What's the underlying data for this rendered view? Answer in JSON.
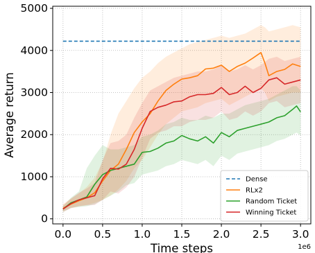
{
  "chart_data": {
    "type": "line",
    "title": "",
    "xlabel": "Time steps",
    "ylabel": "Average return",
    "x_offset_label": "1e6",
    "xlim": [
      -0.13,
      3.13
    ],
    "ylim": [
      -120,
      5050
    ],
    "xticks": [
      0.0,
      0.5,
      1.0,
      1.5,
      2.0,
      2.5,
      3.0
    ],
    "xtick_labels": [
      "0.0",
      "0.5",
      "1.0",
      "1.5",
      "2.0",
      "2.5",
      "3.0"
    ],
    "yticks": [
      0,
      1000,
      2000,
      3000,
      4000,
      5000
    ],
    "ytick_labels": [
      "0",
      "1000",
      "2000",
      "3000",
      "4000",
      "5000"
    ],
    "grid": true,
    "legend_position": "lower-right",
    "series": [
      {
        "name": "Dense",
        "color": "#1f77b4",
        "dashed": true,
        "x": [
          0.0,
          3.0
        ],
        "y": [
          4220,
          4220
        ]
      },
      {
        "name": "RLx2",
        "color": "#ff7f0e",
        "x": [
          0.0,
          0.1,
          0.2,
          0.3,
          0.4,
          0.5,
          0.6,
          0.7,
          0.8,
          0.9,
          1.0,
          1.1,
          1.2,
          1.3,
          1.4,
          1.5,
          1.6,
          1.7,
          1.8,
          1.9,
          2.0,
          2.1,
          2.2,
          2.3,
          2.4,
          2.5,
          2.55,
          2.6,
          2.7,
          2.8,
          2.9,
          3.0
        ],
        "y": [
          250,
          350,
          430,
          500,
          620,
          900,
          1150,
          1300,
          1650,
          2050,
          2300,
          2500,
          2800,
          3050,
          3200,
          3320,
          3350,
          3400,
          3560,
          3580,
          3650,
          3500,
          3620,
          3700,
          3820,
          3950,
          3700,
          3400,
          3500,
          3550,
          3680,
          3620
        ],
        "band_upper": [
          350,
          480,
          600,
          760,
          980,
          1350,
          2000,
          2500,
          2800,
          3100,
          3350,
          3500,
          3700,
          3850,
          3950,
          4050,
          4150,
          4200,
          4250,
          4300,
          4350,
          4300,
          4350,
          4400,
          4500,
          4600,
          4550,
          4450,
          4500,
          4550,
          4600,
          4550
        ],
        "band_lower": [
          180,
          260,
          300,
          330,
          380,
          450,
          550,
          700,
          900,
          1200,
          1400,
          1700,
          2000,
          2250,
          2400,
          2550,
          2600,
          2650,
          2750,
          2800,
          2850,
          2700,
          2800,
          2900,
          3000,
          3100,
          3000,
          2800,
          2900,
          2950,
          3000,
          3000
        ]
      },
      {
        "name": "Random Ticket",
        "color": "#2ca02c",
        "x": [
          0.0,
          0.1,
          0.2,
          0.3,
          0.4,
          0.5,
          0.6,
          0.7,
          0.8,
          0.9,
          1.0,
          1.1,
          1.2,
          1.3,
          1.4,
          1.5,
          1.6,
          1.7,
          1.8,
          1.9,
          2.0,
          2.1,
          2.2,
          2.3,
          2.4,
          2.5,
          2.6,
          2.7,
          2.8,
          2.9,
          2.95,
          3.0
        ],
        "y": [
          230,
          380,
          450,
          520,
          820,
          1050,
          1150,
          1200,
          1250,
          1300,
          1580,
          1600,
          1680,
          1800,
          1850,
          1980,
          1900,
          1850,
          1950,
          1800,
          2050,
          1950,
          2100,
          2150,
          2200,
          2250,
          2300,
          2400,
          2450,
          2600,
          2680,
          2540
        ],
        "band_upper": [
          300,
          500,
          650,
          1200,
          1500,
          1750,
          1650,
          1650,
          1700,
          1750,
          1950,
          2000,
          2100,
          2250,
          2300,
          2400,
          2350,
          2350,
          2450,
          2400,
          2500,
          2500,
          2600,
          2700,
          2750,
          2800,
          2850,
          2950,
          3050,
          3150,
          3150,
          3050
        ],
        "band_lower": [
          160,
          260,
          280,
          300,
          350,
          450,
          550,
          650,
          800,
          850,
          1050,
          1100,
          1150,
          1250,
          1300,
          1400,
          1350,
          1300,
          1400,
          1250,
          1500,
          1400,
          1550,
          1600,
          1650,
          1700,
          1750,
          1850,
          1900,
          2000,
          2050,
          1980
        ]
      },
      {
        "name": "Winning Ticket",
        "color": "#d62728",
        "x": [
          0.0,
          0.1,
          0.2,
          0.3,
          0.4,
          0.5,
          0.6,
          0.7,
          0.8,
          0.9,
          1.0,
          1.1,
          1.2,
          1.3,
          1.4,
          1.5,
          1.6,
          1.7,
          1.8,
          1.9,
          2.0,
          2.1,
          2.2,
          2.3,
          2.4,
          2.5,
          2.6,
          2.7,
          2.8,
          2.9,
          3.0
        ],
        "y": [
          230,
          360,
          450,
          500,
          550,
          950,
          1200,
          1180,
          1300,
          1650,
          2150,
          2550,
          2650,
          2700,
          2780,
          2800,
          2900,
          2950,
          2950,
          2980,
          3120,
          2950,
          3000,
          3150,
          3000,
          3100,
          3300,
          3350,
          3200,
          3250,
          3300
        ],
        "band_upper": [
          320,
          480,
          620,
          720,
          850,
          1400,
          1800,
          1850,
          2000,
          2400,
          2750,
          3050,
          3150,
          3250,
          3350,
          3400,
          3450,
          3500,
          3500,
          3550,
          3650,
          3500,
          3550,
          3650,
          3550,
          3650,
          3800,
          3850,
          3750,
          3800,
          3850
        ],
        "band_lower": [
          160,
          250,
          300,
          320,
          330,
          450,
          650,
          600,
          750,
          1000,
          1450,
          1900,
          2050,
          2100,
          2200,
          2200,
          2300,
          2350,
          2350,
          2400,
          2550,
          2350,
          2400,
          2550,
          2450,
          2550,
          2750,
          2800,
          2650,
          2700,
          2750
        ]
      }
    ]
  }
}
